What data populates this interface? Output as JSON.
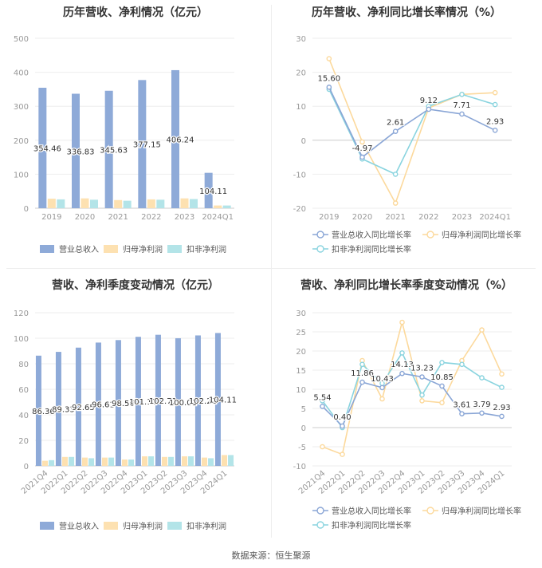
{
  "source": "数据来源：恒生聚源",
  "colors": {
    "revenue": "#8eaad8",
    "parent_np": "#fde1b1",
    "deduct_np": "#b3e4e8",
    "rev_g": "#8aa6d6",
    "parent_g": "#fcd99c",
    "deduct_g": "#8ad4df",
    "axis": "#999999",
    "grid": "#eeeeee",
    "label": "#333333"
  },
  "chart_data": [
    {
      "id": "annual-amounts",
      "type": "bar",
      "title": "历年营收、净利情况（亿元）",
      "categories": [
        "2019",
        "2020",
        "2021",
        "2022",
        "2023",
        "2024Q1"
      ],
      "ylim": [
        0,
        500
      ],
      "yticks": [
        0,
        100,
        200,
        300,
        400,
        500
      ],
      "series": [
        {
          "name": "营业总收入",
          "values": [
            354.46,
            336.83,
            345.63,
            377.15,
            406.24,
            104.11
          ],
          "labels": [
            "354.46",
            "336.83",
            "345.63",
            "377.15",
            "406.24",
            "104.11"
          ]
        },
        {
          "name": "归母净利润",
          "values": [
            28,
            29,
            24,
            26,
            29,
            8
          ]
        },
        {
          "name": "扣非净利润",
          "values": [
            26,
            25,
            22,
            25,
            27,
            8
          ]
        }
      ],
      "grid": true,
      "legend": "bottom"
    },
    {
      "id": "annual-growth",
      "type": "line",
      "title": "历年营收、净利同比增长率情况（%）",
      "categories": [
        "2019",
        "2020",
        "2021",
        "2022",
        "2023",
        "2024Q1"
      ],
      "ylim": [
        -20,
        30
      ],
      "yticks": [
        -20,
        -10,
        0,
        10,
        20,
        30
      ],
      "series": [
        {
          "name": "营业总收入同比增长率",
          "values": [
            15.6,
            -4.97,
            2.61,
            9.12,
            7.71,
            2.93
          ],
          "labels": [
            "15.60",
            "-4.97",
            "2.61",
            "9.12",
            "7.71",
            "2.93"
          ]
        },
        {
          "name": "归母净利润同比增长率",
          "values": [
            24.0,
            -0.5,
            -18.5,
            9.5,
            13.5,
            14.0
          ]
        },
        {
          "name": "扣非净利润同比增长率",
          "values": [
            15.0,
            -5.5,
            -10.0,
            10.0,
            13.5,
            10.5
          ]
        }
      ],
      "grid": true,
      "legend": "bottom"
    },
    {
      "id": "quarterly-amounts",
      "type": "bar",
      "title": "营收、净利季度变动情况（亿元）",
      "categories": [
        "2021Q4",
        "2022Q1",
        "2022Q2",
        "2022Q3",
        "2022Q4",
        "2023Q1",
        "2023Q2",
        "2023Q3",
        "2023Q4",
        "2024Q1"
      ],
      "ylim": [
        0,
        120
      ],
      "yticks": [
        0,
        20,
        40,
        60,
        80,
        100,
        120
      ],
      "series": [
        {
          "name": "营业总收入",
          "values": [
            86.36,
            89.33,
            92.65,
            96.61,
            98.56,
            101.11,
            102.71,
            100.01,
            102.21,
            104.11
          ],
          "labels": [
            "86.36",
            "89.33",
            "92.65",
            "96.61",
            "98.56",
            "101.11",
            "102.71",
            "100.01",
            "102.21",
            "104.11"
          ]
        },
        {
          "name": "归母净利润",
          "values": [
            4.0,
            7.0,
            6.5,
            6.5,
            5.0,
            7.5,
            7.0,
            7.5,
            6.5,
            8.5
          ]
        },
        {
          "name": "扣非净利润",
          "values": [
            4.5,
            7.0,
            6.0,
            6.5,
            5.0,
            7.5,
            7.0,
            7.5,
            6.0,
            8.5
          ]
        }
      ],
      "grid": true,
      "legend": "bottom"
    },
    {
      "id": "quarterly-growth",
      "type": "line",
      "title": "营收、净利同比增长率季度变动情况（%）",
      "categories": [
        "2021Q4",
        "2022Q1",
        "2022Q2",
        "2022Q3",
        "2022Q4",
        "2023Q1",
        "2023Q2",
        "2023Q3",
        "2023Q4",
        "2024Q1"
      ],
      "ylim": [
        -10,
        30
      ],
      "yticks": [
        -10,
        -5,
        0,
        5,
        10,
        15,
        20,
        25,
        30
      ],
      "series": [
        {
          "name": "营业总收入同比增长率",
          "values": [
            5.54,
            0.4,
            11.86,
            10.43,
            14.13,
            13.23,
            10.85,
            3.61,
            3.79,
            2.93
          ],
          "labels": [
            "5.54",
            "0.40",
            "11.86",
            "10.43",
            "14.13",
            "13.23",
            "10.85",
            "3.61",
            "3.79",
            "2.93"
          ]
        },
        {
          "name": "归母净利润同比增长率",
          "values": [
            -5.0,
            -7.0,
            17.5,
            7.5,
            27.5,
            7.0,
            6.5,
            17.5,
            25.5,
            14.0
          ]
        },
        {
          "name": "扣非净利润同比增长率",
          "values": [
            7.0,
            0.0,
            16.5,
            11.5,
            19.5,
            8.5,
            17.0,
            16.5,
            13.0,
            10.5
          ]
        }
      ],
      "grid": true,
      "legend": "bottom"
    }
  ]
}
